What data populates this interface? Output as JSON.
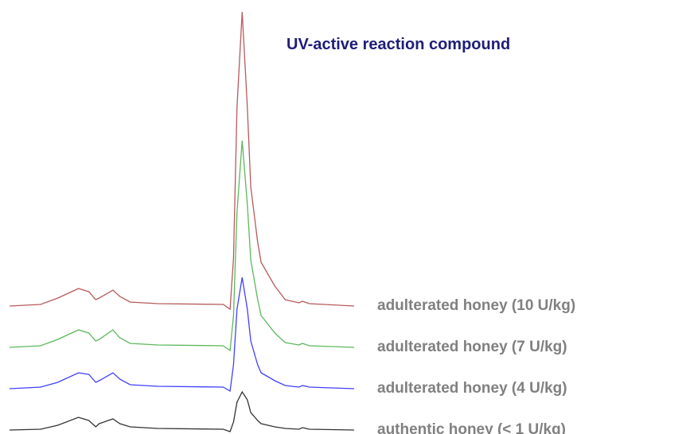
{
  "chart_data": {
    "type": "line",
    "title": "UV-active reaction compound",
    "x": [
      0,
      9,
      14,
      20,
      23,
      25,
      26,
      30,
      32,
      35,
      43,
      62,
      64,
      65,
      66,
      67.5,
      69,
      70,
      72,
      73,
      77,
      80,
      84,
      85,
      87,
      100
    ],
    "series": [
      {
        "name": "adulterated honey (10 U/kg)",
        "color": "#b85a5a",
        "values": [
          0,
          2,
          10,
          22,
          18,
          8,
          10,
          20,
          12,
          5,
          3,
          2,
          -4,
          60,
          250,
          370,
          250,
          150,
          80,
          55,
          25,
          8,
          4,
          6,
          3,
          0
        ]
      },
      {
        "name": "adulterated honey (7 U/kg)",
        "color": "#5cb85c",
        "values": [
          0,
          2,
          10,
          22,
          18,
          8,
          10,
          22,
          12,
          5,
          3,
          2,
          -4,
          40,
          170,
          260,
          180,
          110,
          60,
          40,
          18,
          6,
          3,
          5,
          2,
          0
        ]
      },
      {
        "name": "adulterated honey (4 U/kg)",
        "color": "#4040ff",
        "values": [
          0,
          2,
          8,
          20,
          18,
          8,
          10,
          20,
          12,
          5,
          3,
          2,
          -3,
          30,
          100,
          140,
          100,
          60,
          30,
          20,
          10,
          4,
          2,
          4,
          2,
          0
        ]
      },
      {
        "name": "authentic honey (< 1 U/kg)",
        "color": "#333333",
        "values": [
          0,
          1,
          6,
          16,
          12,
          4,
          8,
          14,
          8,
          4,
          2,
          1,
          -2,
          10,
          35,
          48,
          38,
          22,
          12,
          8,
          4,
          2,
          1,
          3,
          1,
          0
        ]
      }
    ]
  }
}
